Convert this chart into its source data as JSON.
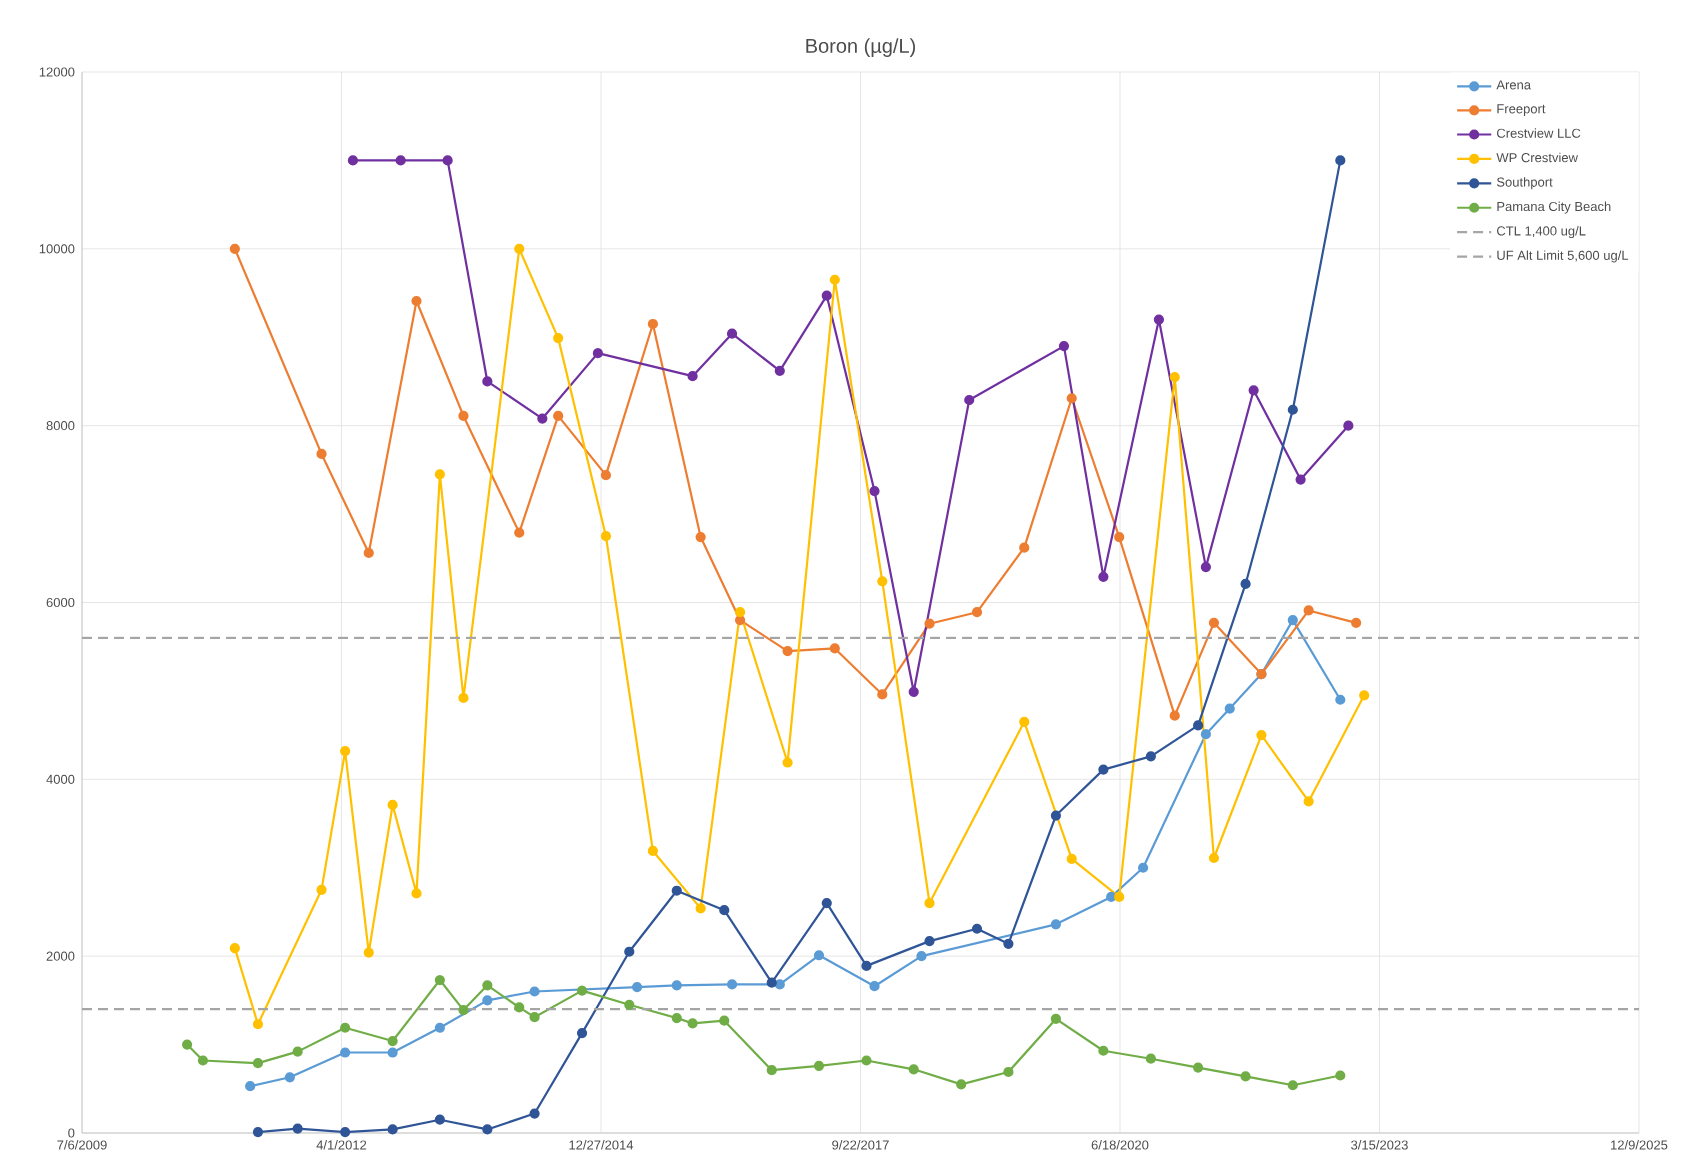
{
  "chart_data": {
    "type": "line",
    "title": "Boron (µg/L)",
    "xlim": [
      "2009-07-06",
      "2025-12-09"
    ],
    "xticks": [
      {
        "value": "2009-07-06",
        "label": "7/6/2009"
      },
      {
        "value": "2012-04-01",
        "label": "4/1/2012"
      },
      {
        "value": "2014-12-27",
        "label": "12/27/2014"
      },
      {
        "value": "2017-09-22",
        "label": "9/22/2017"
      },
      {
        "value": "2020-06-18",
        "label": "6/18/2020"
      },
      {
        "value": "2023-03-15",
        "label": "3/15/2023"
      },
      {
        "value": "2025-12-09",
        "label": "12/9/2025"
      }
    ],
    "ylim": [
      0,
      12000
    ],
    "yticks": [
      0,
      2000,
      4000,
      6000,
      8000,
      10000,
      12000
    ],
    "grid": true,
    "legend": "top right",
    "marker": "circle",
    "line_style": "solid",
    "series": [
      {
        "name": "Arena",
        "color": "#5b9bd5",
        "x": [
          "2011-04",
          "2011-09",
          "2012-04",
          "2012-10",
          "2013-04",
          "2013-10",
          "2014-04",
          "2015-05",
          "2015-10",
          "2016-05",
          "2016-11",
          "2017-04",
          "2017-11",
          "2018-05",
          "2019-10",
          "2020-05",
          "2020-09",
          "2021-05",
          "2021-08",
          "2021-12",
          "2022-04",
          "2022-10"
        ],
        "values": [
          530,
          630,
          910,
          910,
          1190,
          1500,
          1600,
          1650,
          1670,
          1680,
          1680,
          2010,
          1660,
          2000,
          2360,
          2670,
          3000,
          4510,
          4800,
          5190,
          5800,
          4900
        ]
      },
      {
        "name": "Freeport",
        "color": "#ed7d31",
        "x": [
          "2011-02",
          "2012-01",
          "2012-07",
          "2013-01",
          "2013-07",
          "2014-02",
          "2014-07",
          "2015-01",
          "2015-07",
          "2016-01",
          "2016-06",
          "2016-12",
          "2017-06",
          "2017-12",
          "2018-06",
          "2018-12",
          "2019-06",
          "2019-12",
          "2020-06",
          "2021-01",
          "2021-06",
          "2021-12",
          "2022-06",
          "2022-12"
        ],
        "values": [
          10000,
          7680,
          6560,
          9410,
          8110,
          6790,
          8110,
          7440,
          9150,
          6740,
          5800,
          5450,
          5480,
          4960,
          5760,
          5890,
          6620,
          8310,
          6740,
          4720,
          5770,
          5190,
          5910,
          5770
        ]
      },
      {
        "name": "Crestview LLC",
        "color": "#7030a0",
        "x": [
          "2012-05",
          "2012-11",
          "2013-05",
          "2013-10",
          "2014-05",
          "2014-12",
          "2015-12",
          "2016-05",
          "2016-11",
          "2017-05",
          "2017-11",
          "2018-04",
          "2018-11",
          "2019-11",
          "2020-04",
          "2020-11",
          "2021-05",
          "2021-11",
          "2022-05",
          "2022-11"
        ],
        "values": [
          11000,
          11000,
          11000,
          8500,
          8080,
          8820,
          8560,
          9040,
          8620,
          9470,
          7260,
          4990,
          8290,
          8900,
          6290,
          9200,
          6400,
          8400,
          7390,
          8000
        ]
      },
      {
        "name": "WP Crestview",
        "color": "#ffc000",
        "x": [
          "2011-02",
          "2011-05",
          "2012-01",
          "2012-04",
          "2012-07",
          "2012-10",
          "2013-01",
          "2013-04",
          "2013-07",
          "2014-02",
          "2014-07",
          "2015-01",
          "2015-07",
          "2016-01",
          "2016-06",
          "2016-12",
          "2017-06",
          "2017-12",
          "2018-06",
          "2019-06",
          "2019-12",
          "2020-06",
          "2021-01",
          "2021-06",
          "2021-12",
          "2022-06",
          "2023-01"
        ],
        "values": [
          2090,
          1230,
          2750,
          4320,
          2040,
          3710,
          2710,
          7450,
          4920,
          10000,
          8990,
          6750,
          3190,
          2540,
          5890,
          4190,
          9650,
          6240,
          2600,
          4650,
          3100,
          2670,
          8550,
          3110,
          4500,
          3750,
          4950
        ]
      },
      {
        "name": "Southport",
        "color": "#2f5597",
        "x": [
          "2011-05",
          "2011-10",
          "2012-04",
          "2012-10",
          "2013-04",
          "2013-10",
          "2014-04",
          "2014-10",
          "2015-04",
          "2015-10",
          "2016-04",
          "2016-10",
          "2017-05",
          "2017-10",
          "2018-06",
          "2018-12",
          "2019-04",
          "2019-10",
          "2020-04",
          "2020-10",
          "2021-04",
          "2021-10",
          "2022-04",
          "2022-10"
        ],
        "values": [
          10,
          50,
          10,
          40,
          150,
          40,
          220,
          1130,
          2050,
          2740,
          2520,
          1700,
          2600,
          1890,
          2170,
          2310,
          2140,
          3590,
          4110,
          4260,
          4610,
          6210,
          8180,
          11000
        ]
      },
      {
        "name": "Pamana City Beach",
        "color": "#70ad47",
        "x": [
          "2010-08",
          "2010-10",
          "2011-05",
          "2011-10",
          "2012-04",
          "2012-10",
          "2013-04",
          "2013-07",
          "2013-10",
          "2014-02",
          "2014-04",
          "2014-10",
          "2015-04",
          "2015-10",
          "2015-12",
          "2016-04",
          "2016-10",
          "2017-04",
          "2017-10",
          "2018-04",
          "2018-10",
          "2019-04",
          "2019-10",
          "2020-04",
          "2020-10",
          "2021-04",
          "2021-10",
          "2022-04",
          "2022-10"
        ],
        "values": [
          1000,
          820,
          790,
          920,
          1190,
          1040,
          1730,
          1390,
          1670,
          1420,
          1310,
          1610,
          1450,
          1300,
          1240,
          1270,
          710,
          760,
          820,
          720,
          550,
          690,
          1290,
          930,
          840,
          740,
          640,
          540,
          650
        ]
      }
    ],
    "ref_lines": [
      {
        "axis": "y",
        "value": 1400,
        "label": "CTL 1,400 ug/L",
        "color": "#a5a5a5",
        "line_style": "dashed"
      },
      {
        "axis": "y",
        "value": 5600,
        "label": "UF Alt Limit 5,600 ug/L",
        "color": "#a5a5a5",
        "line_style": "dashed"
      }
    ]
  }
}
